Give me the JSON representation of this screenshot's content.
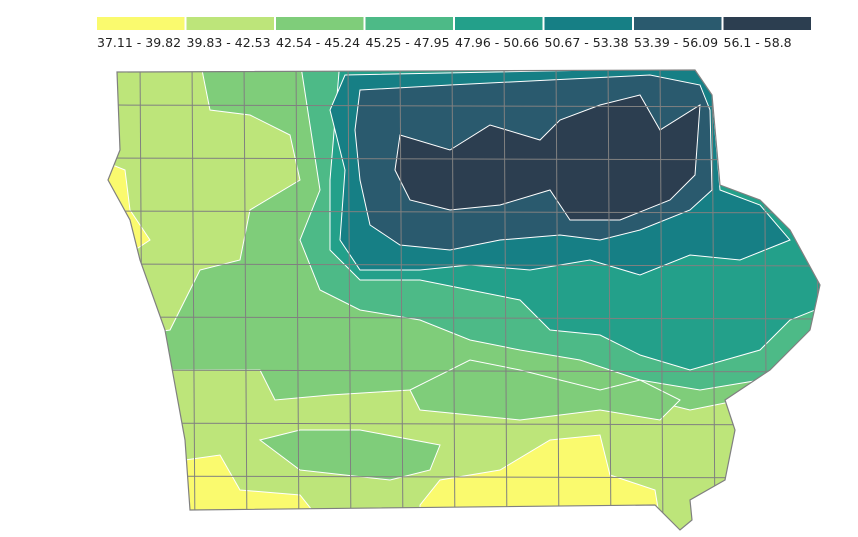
{
  "legend": {
    "items": [
      {
        "label": "37.11 - 39.82",
        "color": "#fafa6e"
      },
      {
        "label": "39.83 - 42.53",
        "color": "#bde57a"
      },
      {
        "label": "42.54 - 45.24",
        "color": "#7fcd7a"
      },
      {
        "label": "45.25 - 47.95",
        "color": "#4dba87"
      },
      {
        "label": "47.96 - 50.66",
        "color": "#23a08a"
      },
      {
        "label": "50.67 - 53.38",
        "color": "#167f85"
      },
      {
        "label": "53.39 - 56.09",
        "color": "#2a5a6e"
      },
      {
        "label": "56.1 - 58.8",
        "color": "#2c3e50"
      }
    ]
  }
}
